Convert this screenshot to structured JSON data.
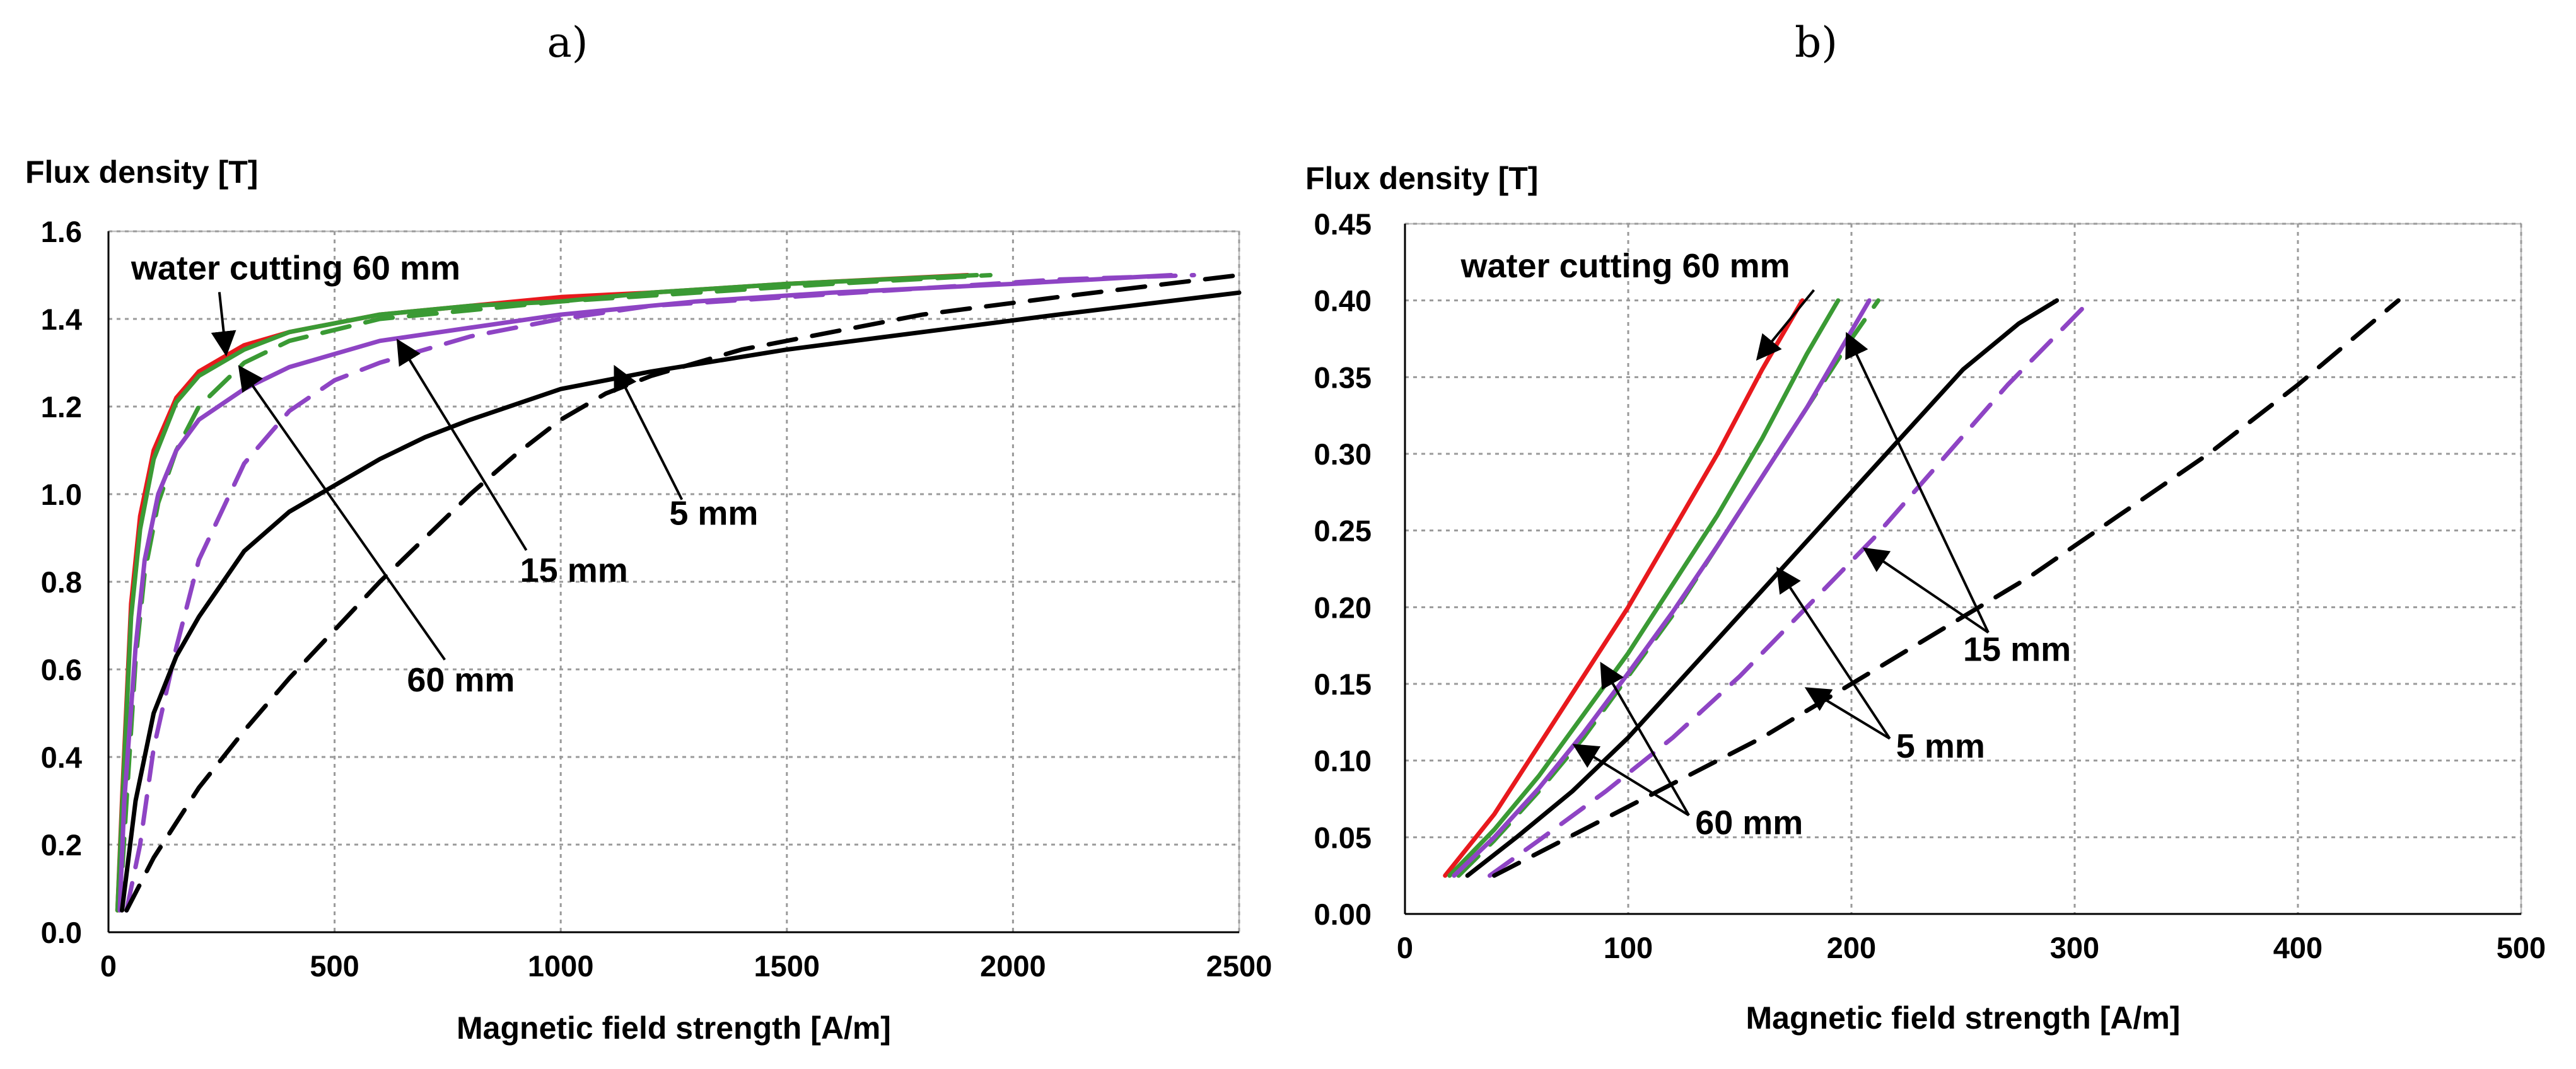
{
  "panel_labels": [
    "a)",
    "b)"
  ],
  "colors": {
    "water_cutting": "#e8191d",
    "green": "#3a9a34",
    "purple": "#8e44c4",
    "black": "#000000",
    "grid": "#9a9a9a"
  },
  "chart_data": [
    {
      "type": "line",
      "panel": "a)",
      "ylabel": "Flux density [T]",
      "xlabel": "Magnetic field strength [A/m]",
      "xlim": [
        0,
        2500
      ],
      "ylim": [
        0,
        1.6
      ],
      "xticks": [
        "0",
        "500",
        "1000",
        "1500",
        "2000",
        "2500"
      ],
      "yticks": [
        "0.0",
        "0.2",
        "0.4",
        "0.6",
        "0.8",
        "1.0",
        "1.2",
        "1.4",
        "1.6"
      ],
      "grid": true,
      "series": [
        {
          "color": "red",
          "dash": "solid",
          "x": [
            20,
            30,
            50,
            70,
            100,
            150,
            200,
            300,
            400,
            600,
            800,
            1000,
            1200,
            1500,
            1900
          ],
          "y": [
            0.05,
            0.3,
            0.75,
            0.95,
            1.1,
            1.22,
            1.28,
            1.34,
            1.37,
            1.41,
            1.43,
            1.45,
            1.46,
            1.48,
            1.5
          ]
        },
        {
          "color": "green",
          "dash": "solid",
          "x": [
            20,
            30,
            50,
            70,
            100,
            150,
            200,
            300,
            400,
            600,
            800,
            1000,
            1200,
            1500,
            1920
          ],
          "y": [
            0.05,
            0.28,
            0.72,
            0.92,
            1.08,
            1.21,
            1.27,
            1.33,
            1.37,
            1.41,
            1.43,
            1.44,
            1.46,
            1.48,
            1.5
          ]
        },
        {
          "color": "green",
          "dash": "dashed",
          "x": [
            25,
            40,
            60,
            80,
            110,
            150,
            200,
            300,
            400,
            600,
            800,
            1000,
            1300,
            1600,
            1950
          ],
          "y": [
            0.05,
            0.3,
            0.62,
            0.82,
            0.98,
            1.1,
            1.2,
            1.3,
            1.35,
            1.4,
            1.42,
            1.44,
            1.46,
            1.48,
            1.5
          ]
        },
        {
          "color": "purple",
          "dash": "solid",
          "x": [
            25,
            35,
            60,
            80,
            110,
            150,
            200,
            300,
            400,
            600,
            800,
            1000,
            1300,
            1600,
            2000,
            2350
          ],
          "y": [
            0.05,
            0.3,
            0.65,
            0.85,
            1.0,
            1.1,
            1.17,
            1.24,
            1.29,
            1.35,
            1.38,
            1.41,
            1.44,
            1.46,
            1.48,
            1.5
          ]
        },
        {
          "color": "purple",
          "dash": "dashed",
          "x": [
            40,
            70,
            100,
            150,
            200,
            300,
            400,
            500,
            600,
            800,
            1000,
            1200,
            1500,
            1800,
            2100,
            2400
          ],
          "y": [
            0.05,
            0.2,
            0.42,
            0.65,
            0.85,
            1.07,
            1.19,
            1.26,
            1.3,
            1.36,
            1.4,
            1.43,
            1.45,
            1.47,
            1.49,
            1.5
          ]
        },
        {
          "color": "black",
          "dash": "solid",
          "x": [
            30,
            60,
            100,
            150,
            200,
            300,
            400,
            500,
            600,
            700,
            800,
            1000,
            1200,
            1500,
            1800,
            2100,
            2500
          ],
          "y": [
            0.05,
            0.3,
            0.5,
            0.63,
            0.72,
            0.87,
            0.96,
            1.02,
            1.08,
            1.13,
            1.17,
            1.24,
            1.28,
            1.33,
            1.37,
            1.41,
            1.46
          ]
        },
        {
          "color": "black",
          "dash": "dashed",
          "x": [
            40,
            100,
            200,
            300,
            400,
            500,
            600,
            700,
            800,
            900,
            1000,
            1100,
            1200,
            1400,
            1600,
            1800,
            2100,
            2500
          ],
          "y": [
            0.05,
            0.17,
            0.33,
            0.46,
            0.58,
            0.69,
            0.8,
            0.9,
            1.0,
            1.09,
            1.17,
            1.23,
            1.27,
            1.33,
            1.37,
            1.41,
            1.45,
            1.5
          ]
        }
      ],
      "annotations": [
        {
          "text": "water cutting 60 mm",
          "text_at": [
            50,
            1.49
          ],
          "target": [
            260,
            1.32
          ]
        },
        {
          "text": "15 mm",
          "text_at": [
            910,
            0.8
          ],
          "target": [
            640,
            1.35
          ]
        },
        {
          "text": "5 mm",
          "text_at": [
            1240,
            0.93
          ],
          "target": [
            1120,
            1.29
          ]
        },
        {
          "text": "60 mm",
          "text_at": [
            660,
            0.55
          ],
          "target": [
            290,
            1.29
          ]
        }
      ]
    },
    {
      "type": "line",
      "panel": "b)",
      "ylabel": "Flux density [T]",
      "xlabel": "Magnetic field strength [A/m]",
      "xlim": [
        0,
        500
      ],
      "ylim": [
        0,
        0.45
      ],
      "xticks": [
        "0",
        "100",
        "200",
        "300",
        "400",
        "500"
      ],
      "yticks": [
        "0.00",
        "0.05",
        "0.10",
        "0.15",
        "0.20",
        "0.25",
        "0.30",
        "0.35",
        "0.40",
        "0.45"
      ],
      "grid": true,
      "series": [
        {
          "color": "red",
          "dash": "solid",
          "x": [
            18,
            40,
            60,
            80,
            100,
            120,
            140,
            160,
            178
          ],
          "y": [
            0.025,
            0.065,
            0.11,
            0.155,
            0.2,
            0.25,
            0.3,
            0.355,
            0.4
          ]
        },
        {
          "color": "green",
          "dash": "solid",
          "x": [
            20,
            40,
            60,
            80,
            100,
            120,
            140,
            160,
            180,
            194
          ],
          "y": [
            0.025,
            0.055,
            0.09,
            0.13,
            0.17,
            0.215,
            0.26,
            0.31,
            0.365,
            0.4
          ]
        },
        {
          "color": "green",
          "dash": "dashed",
          "x": [
            24,
            40,
            60,
            80,
            100,
            120,
            140,
            160,
            180,
            200,
            212
          ],
          "y": [
            0.025,
            0.048,
            0.08,
            0.115,
            0.155,
            0.195,
            0.24,
            0.285,
            0.33,
            0.375,
            0.4
          ]
        },
        {
          "color": "purple",
          "dash": "solid",
          "x": [
            22,
            40,
            60,
            80,
            100,
            120,
            140,
            160,
            180,
            200,
            208
          ],
          "y": [
            0.025,
            0.05,
            0.082,
            0.118,
            0.157,
            0.197,
            0.24,
            0.285,
            0.33,
            0.38,
            0.4
          ]
        },
        {
          "color": "purple",
          "dash": "dashed",
          "x": [
            38,
            60,
            90,
            120,
            150,
            180,
            210,
            240,
            270,
            307
          ],
          "y": [
            0.025,
            0.048,
            0.08,
            0.115,
            0.155,
            0.2,
            0.245,
            0.295,
            0.345,
            0.4
          ]
        },
        {
          "color": "black",
          "dash": "solid",
          "x": [
            28,
            50,
            75,
            100,
            125,
            150,
            175,
            200,
            225,
            250,
            275,
            292
          ],
          "y": [
            0.025,
            0.05,
            0.08,
            0.115,
            0.155,
            0.195,
            0.235,
            0.275,
            0.315,
            0.355,
            0.385,
            0.4
          ]
        },
        {
          "color": "black",
          "dash": "dashed",
          "x": [
            40,
            80,
            120,
            160,
            200,
            240,
            280,
            320,
            360,
            400,
            445
          ],
          "y": [
            0.025,
            0.055,
            0.085,
            0.115,
            0.15,
            0.185,
            0.22,
            0.26,
            0.3,
            0.345,
            0.4
          ]
        }
      ],
      "annotations": [
        {
          "text": "water cutting 60 mm",
          "text_at": [
            25,
            0.415
          ],
          "target": [
            158,
            0.362
          ],
          "targets": [
            [
              158,
              0.362
            ]
          ]
        },
        {
          "text": "15 mm",
          "text_at": [
            250,
            0.165
          ],
          "targets": [
            [
              198,
              0.378
            ],
            [
              206,
              0.238
            ]
          ]
        },
        {
          "text": "5 mm",
          "text_at": [
            220,
            0.102
          ],
          "targets": [
            [
              167,
              0.225
            ],
            [
              180,
              0.147
            ]
          ]
        },
        {
          "text": "60 mm",
          "text_at": [
            130,
            0.052
          ],
          "targets": [
            [
              88,
              0.163
            ],
            [
              76,
              0.11
            ]
          ]
        }
      ]
    }
  ]
}
